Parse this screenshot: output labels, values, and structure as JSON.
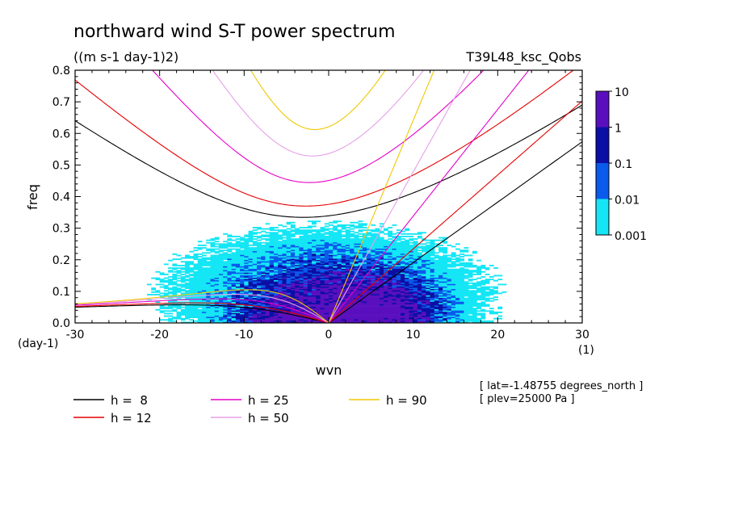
{
  "chart_data": {
    "type": "heatmap",
    "title": "northward wind S-T power spectrum",
    "subtitle": "((m s-1 day-1)2)",
    "run_label": "T39L48_ksc_Qobs",
    "xlabel": "wvn",
    "ylabel": "freq",
    "x_unit": "(1)",
    "y_unit": "(day-1)",
    "xlim": [
      -30,
      30
    ],
    "ylim": [
      0,
      0.8
    ],
    "xticks": [
      "-30",
      "-20",
      "-10",
      "0",
      "10",
      "20",
      "30"
    ],
    "yticks": [
      "0.0",
      "0.1",
      "0.2",
      "0.3",
      "0.4",
      "0.5",
      "0.6",
      "0.7",
      "0.8"
    ],
    "colorbar": {
      "levels": [
        "10",
        "1",
        "0.1",
        "0.01",
        "0.001"
      ],
      "colors": [
        "#5a0fbe",
        "#0a0fa5",
        "#0a5aeb",
        "#14e6f5"
      ]
    },
    "series": [
      {
        "name": "h =  8",
        "color": "#000000",
        "h": 8
      },
      {
        "name": "h = 12",
        "color": "#e60000",
        "h": 12
      },
      {
        "name": "h = 25",
        "color": "#e600c8",
        "h": 25
      },
      {
        "name": "h = 50",
        "color": "#e6a0e6",
        "h": 50
      },
      {
        "name": "h = 90",
        "color": "#f0c800",
        "h": 90
      }
    ],
    "annotations": [
      "[ lat=-1.48755 degrees_north ]",
      "[ plev=25000 Pa ]"
    ]
  }
}
